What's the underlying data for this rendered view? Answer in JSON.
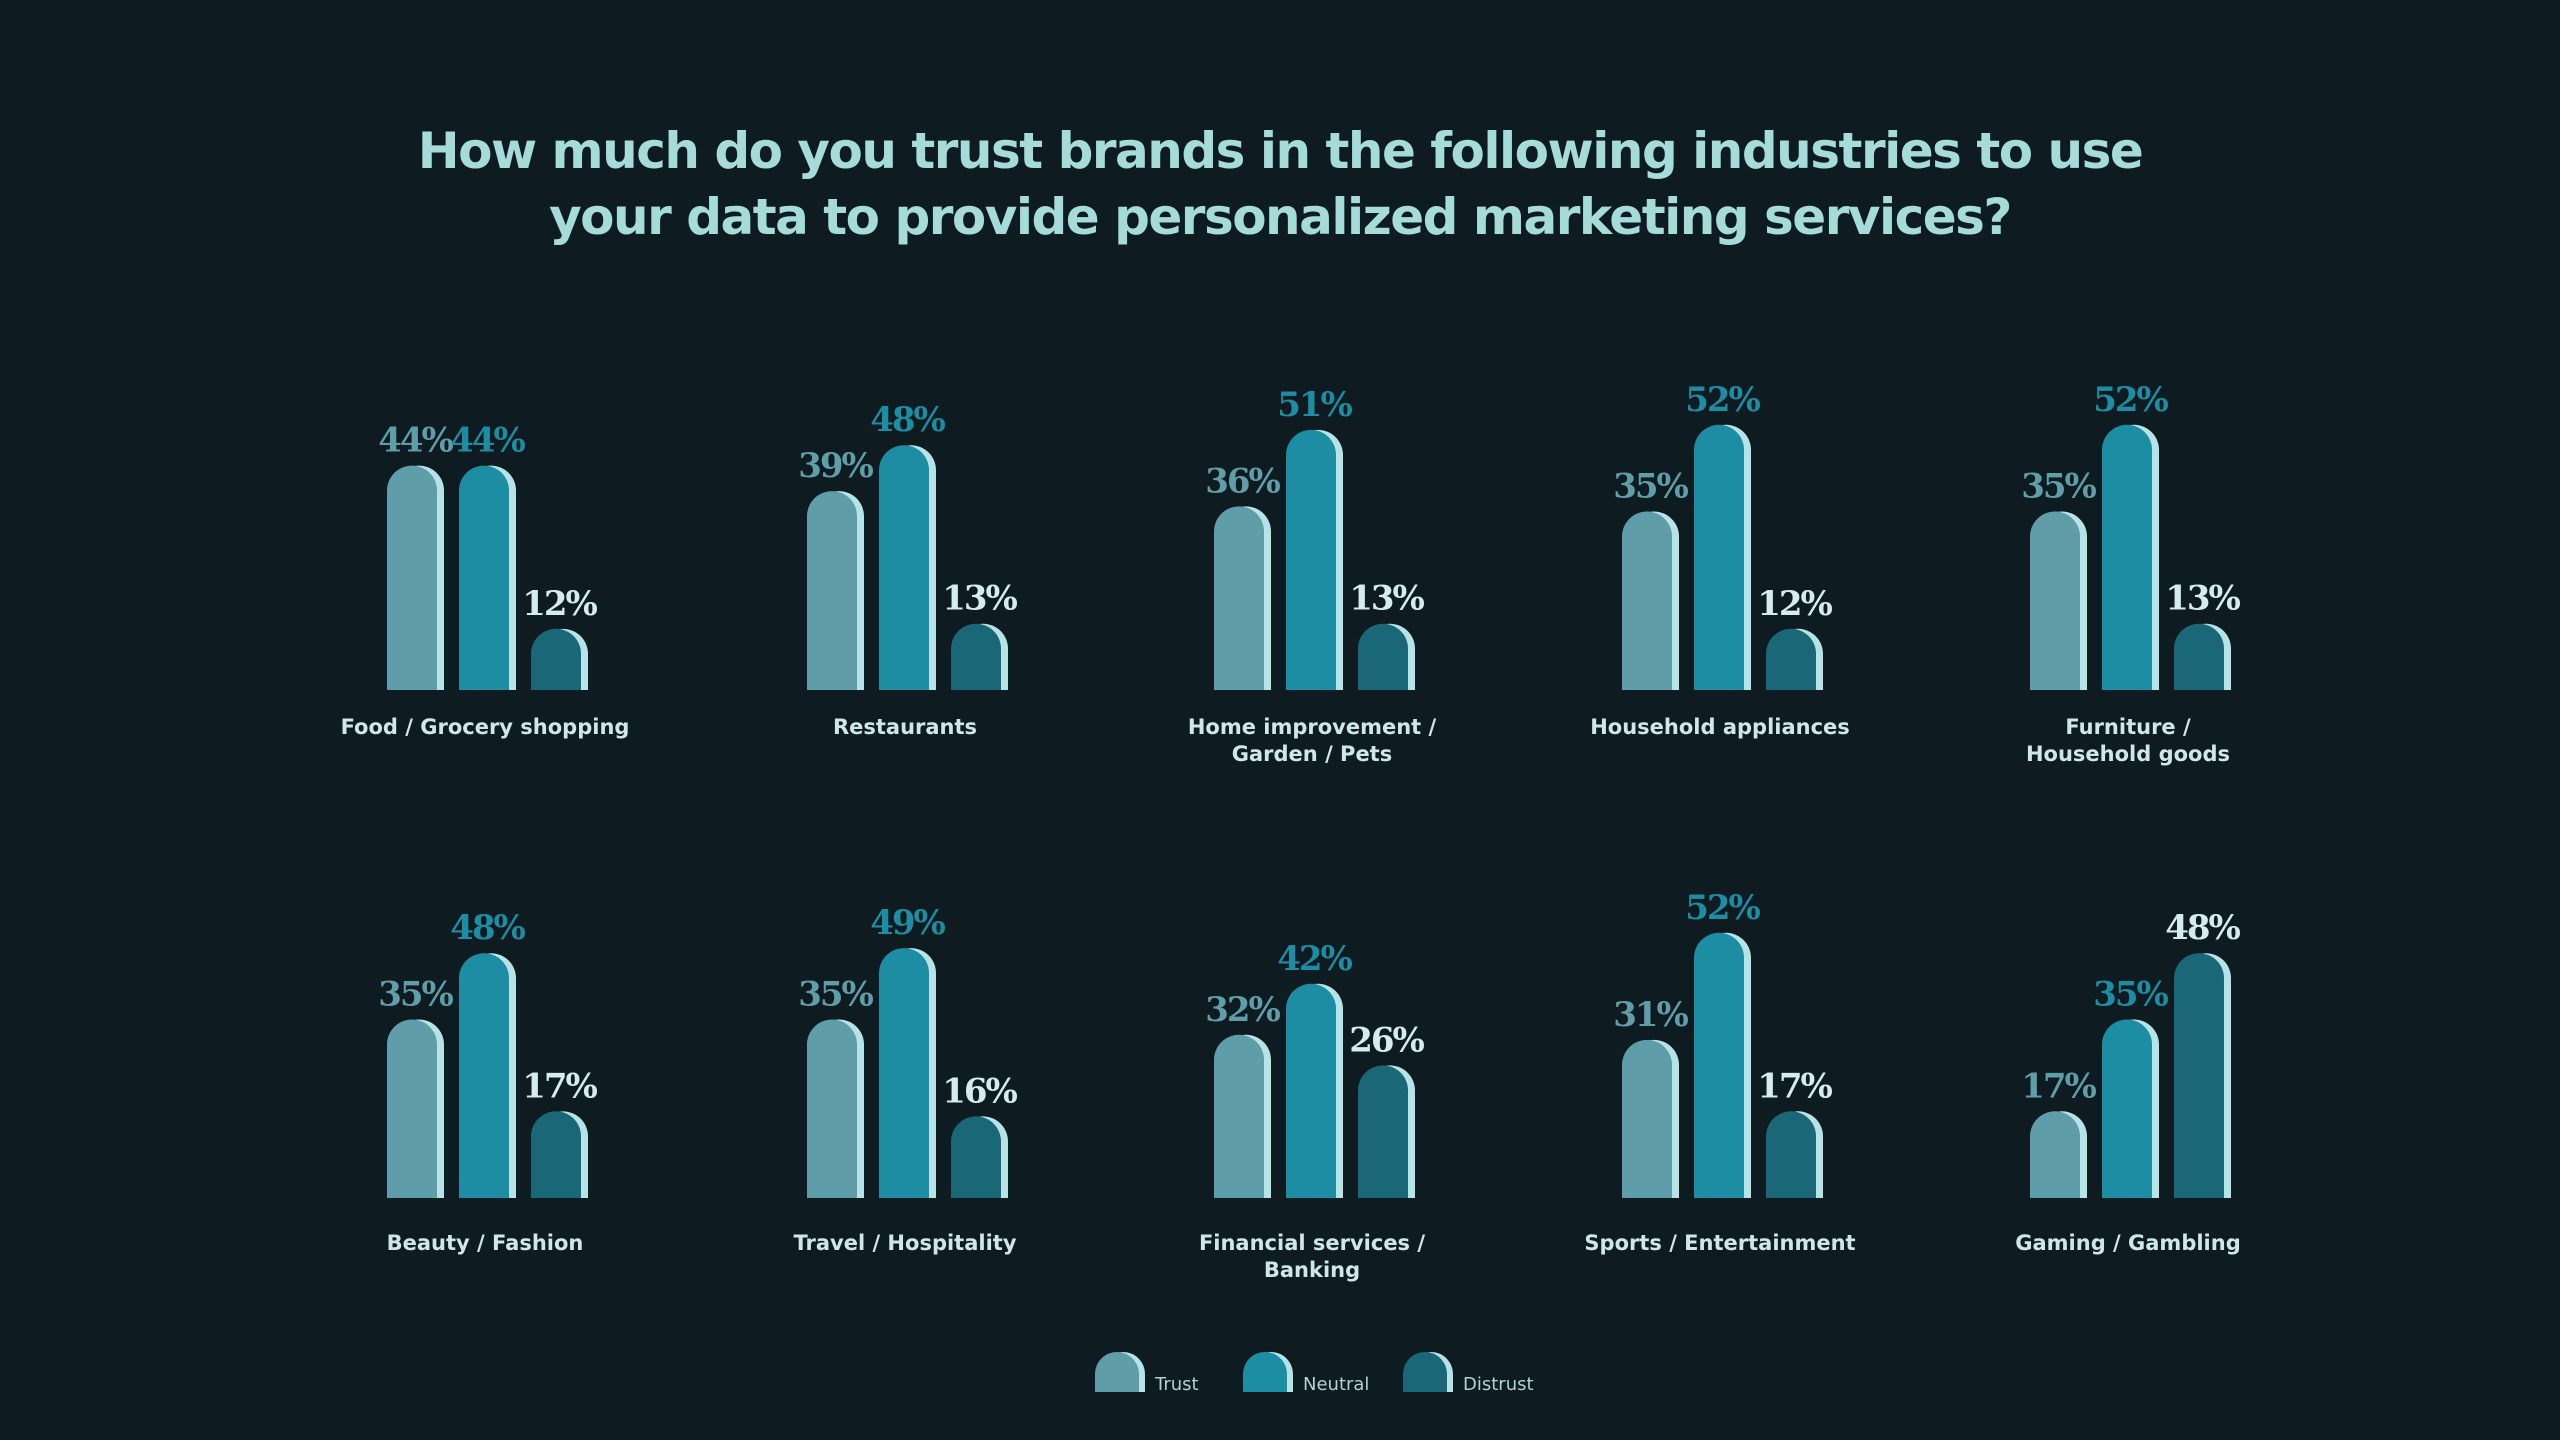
{
  "chart_data": {
    "type": "bar",
    "title_lines": [
      "How much do you trust brands in the following industries to use",
      "your data to provide personalized marketing services?"
    ],
    "unit": "%",
    "series": [
      {
        "name": "Trust",
        "color": "#5f9ea9"
      },
      {
        "name": "Neutral",
        "color": "#1c8da3"
      },
      {
        "name": "Distrust",
        "color": "#1a6777"
      }
    ],
    "label_colors": [
      "#5f9ea9",
      "#1c8da3",
      "#d5ecee"
    ],
    "panels": [
      {
        "label_lines": [
          "Food / Grocery shopping"
        ],
        "values": [
          44,
          44,
          12
        ]
      },
      {
        "label_lines": [
          "Restaurants"
        ],
        "values": [
          39,
          48,
          13
        ]
      },
      {
        "label_lines": [
          "Home improvement /",
          "Garden / Pets"
        ],
        "values": [
          36,
          51,
          13
        ]
      },
      {
        "label_lines": [
          "Household appliances"
        ],
        "values": [
          35,
          52,
          12
        ]
      },
      {
        "label_lines": [
          "Furniture /",
          "Household goods"
        ],
        "values": [
          35,
          52,
          13
        ]
      },
      {
        "label_lines": [
          "Beauty / Fashion"
        ],
        "values": [
          35,
          48,
          17
        ]
      },
      {
        "label_lines": [
          "Travel / Hospitality"
        ],
        "values": [
          35,
          49,
          16
        ]
      },
      {
        "label_lines": [
          "Financial services /",
          "Banking"
        ],
        "values": [
          32,
          42,
          26
        ]
      },
      {
        "label_lines": [
          "Sports / Entertainment"
        ],
        "values": [
          31,
          52,
          17
        ]
      },
      {
        "label_lines": [
          "Gaming / Gambling"
        ],
        "values": [
          17,
          35,
          48
        ]
      }
    ],
    "legend_position": "bottom-center"
  }
}
